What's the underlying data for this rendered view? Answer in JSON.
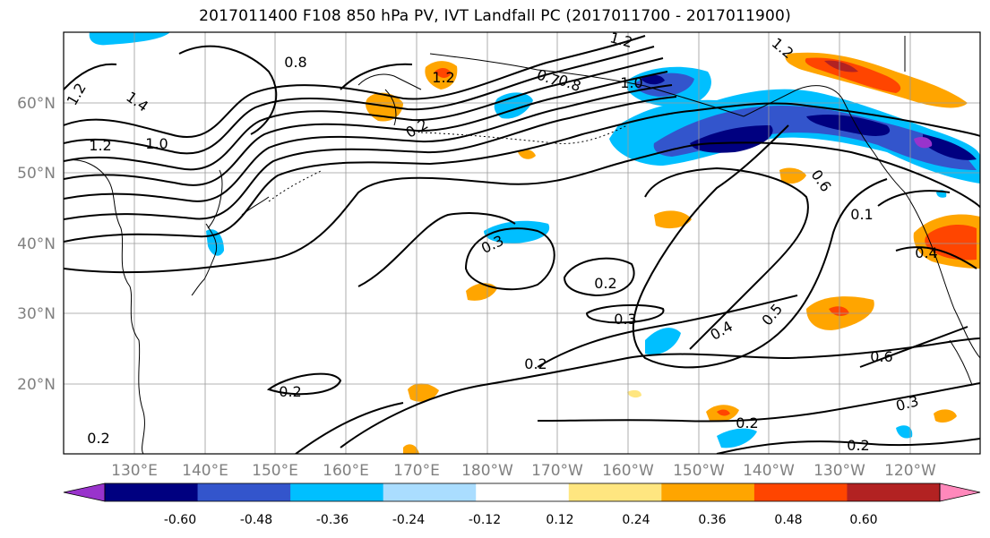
{
  "title": "2017011400 F108 850 hPa PV, IVT Landfall PC (2017011700 - 2017011900)",
  "map": {
    "lon_range": [
      120,
      250
    ],
    "lat_range": [
      10,
      70
    ],
    "lat_labels": [
      "20°N",
      "30°N",
      "40°N",
      "50°N",
      "60°N"
    ],
    "lon_labels": [
      "130°E",
      "140°E",
      "150°E",
      "160°E",
      "170°E",
      "180°W",
      "170°W",
      "160°W",
      "150°W",
      "140°W",
      "130°W",
      "120°W"
    ],
    "gridlines": true,
    "axis_label_color": "#808080"
  },
  "contour_labels": [
    "0.8",
    "1.2",
    "1.2",
    "1.4",
    "1.0",
    "1.2",
    "0.2",
    "0.7",
    "0.8",
    "1.0",
    "1.2",
    "1.2",
    "0.6",
    "0.1",
    "0.4",
    "0.3",
    "0.2",
    "0.3",
    "0.4",
    "0.5",
    "0.2",
    "0.6",
    "0.2",
    "0.3",
    "0.2",
    "0.2",
    "0.2"
  ],
  "colorbar": {
    "colors": [
      "#9933cc",
      "#000080",
      "#3355cc",
      "#00bfff",
      "#aaddff",
      "#ffffff",
      "#ffe680",
      "#ffa500",
      "#ff4500",
      "#b22222",
      "#ff88bb"
    ],
    "tick_labels": [
      "-0.60",
      "-0.48",
      "-0.36",
      "-0.24",
      "-0.12",
      "0.12",
      "0.24",
      "0.36",
      "0.48",
      "0.60"
    ],
    "extend": "both"
  }
}
